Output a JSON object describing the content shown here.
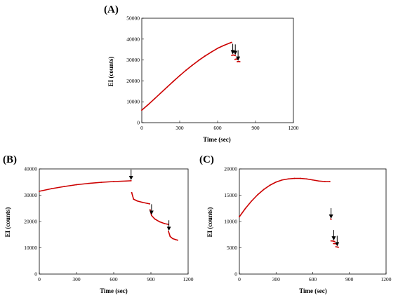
{
  "chart_data": [
    {
      "type": "scatter",
      "panel_label": "(A)",
      "xlabel": "Time (sec)",
      "ylabel": "EI (counts)",
      "xlim": [
        0,
        1200
      ],
      "ylim": [
        0,
        50000
      ],
      "x_ticks": [
        "0",
        "300",
        "600",
        "900",
        "1200"
      ],
      "y_ticks": [
        "0",
        "10000",
        "20000",
        "30000",
        "40000",
        "50000"
      ],
      "grid": false,
      "legend": "none",
      "color": "#cc0000",
      "series": [
        {
          "segments": [
            {
              "x": [
                0,
                50,
                100,
                150,
                200,
                250,
                300,
                350,
                400,
                450,
                500,
                550,
                600,
                650,
                700,
                710
              ],
              "y": [
                6000,
                8600,
                11400,
                14200,
                17000,
                19800,
                22500,
                25100,
                27500,
                29800,
                31900,
                33800,
                35600,
                37000,
                38200,
                38400
              ]
            },
            {
              "x": [
                712,
                722,
                732,
                740
              ],
              "y": [
                32200,
                32400,
                32300,
                32100
              ]
            },
            {
              "x": [
                738,
                748,
                756
              ],
              "y": [
                30300,
                30500,
                30300
              ]
            },
            {
              "x": [
                756,
                766,
                776
              ],
              "y": [
                29200,
                29300,
                29200
              ]
            }
          ]
        }
      ],
      "arrows_at_x": [
        720,
        740,
        762
      ]
    },
    {
      "type": "scatter",
      "panel_label": "(B)",
      "xlabel": "Time (sec)",
      "ylabel": "EI (counts)",
      "xlim": [
        0,
        1200
      ],
      "ylim": [
        0,
        40000
      ],
      "x_ticks": [
        "0",
        "300",
        "600",
        "900",
        "1200"
      ],
      "y_ticks": [
        "0",
        "10000",
        "20000",
        "30000",
        "40000"
      ],
      "grid": false,
      "legend": "none",
      "color": "#cc0000",
      "series": [
        {
          "segments": [
            {
              "x": [
                0,
                100,
                200,
                300,
                400,
                500,
                600,
                700,
                740
              ],
              "y": [
                31500,
                32500,
                33300,
                34000,
                34500,
                34900,
                35200,
                35400,
                35500
              ]
            },
            {
              "x": [
                745,
                760,
                790,
                830,
                870,
                890
              ],
              "y": [
                31000,
                28500,
                27800,
                27300,
                26900,
                26700
              ]
            },
            {
              "x": [
                893,
                905,
                930,
                970,
                1010,
                1040
              ],
              "y": [
                24500,
                22300,
                21000,
                19900,
                19200,
                18900
              ]
            },
            {
              "x": [
                1042,
                1055,
                1075,
                1100,
                1115
              ],
              "y": [
                16200,
                14300,
                13500,
                13100,
                12900
              ]
            }
          ]
        }
      ],
      "arrows_at_x": [
        740,
        905,
        1045
      ]
    },
    {
      "type": "scatter",
      "panel_label": "(C)",
      "xlabel": "Time (sec)",
      "ylabel": "EI (counts)",
      "xlim": [
        0,
        1200
      ],
      "ylim": [
        0,
        20000
      ],
      "x_ticks": [
        "0",
        "300",
        "600",
        "900",
        "1200"
      ],
      "y_ticks": [
        "0",
        "5000",
        "10000",
        "15000",
        "20000"
      ],
      "grid": false,
      "legend": "none",
      "color": "#cc0000",
      "series": [
        {
          "segments": [
            {
              "x": [
                0,
                50,
                100,
                150,
                200,
                250,
                300,
                350,
                400,
                450,
                500,
                550,
                600,
                650,
                700,
                740
              ],
              "y": [
                10900,
                12500,
                13900,
                15100,
                16100,
                16900,
                17500,
                17900,
                18100,
                18200,
                18200,
                18100,
                17900,
                17700,
                17600,
                17600
              ]
            },
            {
              "x": [
                748,
                750
              ],
              "y": [
                10500,
                10400
              ]
            },
            {
              "x": [
                750,
                760,
                770,
                780
              ],
              "y": [
                6300,
                6300,
                6250,
                6200
              ]
            },
            {
              "x": [
                770,
                778,
                786
              ],
              "y": [
                5800,
                5800,
                5750
              ]
            },
            {
              "x": [
                790,
                800,
                810
              ],
              "y": [
                5200,
                5150,
                5100
              ]
            }
          ]
        }
      ],
      "arrows_at_x": [
        750,
        772,
        800
      ]
    }
  ]
}
